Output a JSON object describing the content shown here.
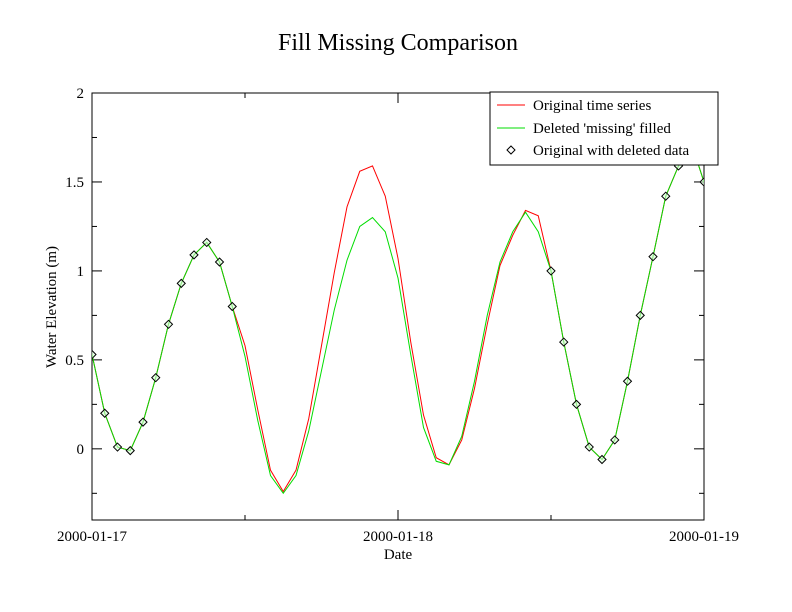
{
  "chart_data": {
    "type": "line",
    "title": "Fill Missing Comparison",
    "xlabel": "Date",
    "ylabel": "Water Elevation (m)",
    "xlim": [
      "2000-01-17 00:00",
      "2000-01-19 00:00"
    ],
    "ylim": [
      -0.4,
      2.0
    ],
    "x_ticks": [
      "2000-01-17",
      "2000-01-18",
      "2000-01-19"
    ],
    "y_ticks": [
      "0",
      "0.5",
      "1",
      "1.5",
      "2"
    ],
    "grid": false,
    "legend_position": "top-right",
    "colors": {
      "original": "#ff0000",
      "filled": "#00dd00",
      "markers": "#000000",
      "marker_fill": "#d8ffd8"
    },
    "series": [
      {
        "name": "Original time series",
        "style": "line",
        "color": "#ff0000",
        "x": [
          "2000-01-17 00:00",
          "2000-01-17 01:00",
          "2000-01-17 02:00",
          "2000-01-17 03:00",
          "2000-01-17 04:00",
          "2000-01-17 05:00",
          "2000-01-17 06:00",
          "2000-01-17 07:00",
          "2000-01-17 08:00",
          "2000-01-17 09:00",
          "2000-01-17 10:00",
          "2000-01-17 11:00",
          "2000-01-17 12:00",
          "2000-01-17 13:00",
          "2000-01-17 14:00",
          "2000-01-17 15:00",
          "2000-01-17 16:00",
          "2000-01-17 17:00",
          "2000-01-17 18:00",
          "2000-01-17 19:00",
          "2000-01-17 20:00",
          "2000-01-17 21:00",
          "2000-01-17 22:00",
          "2000-01-17 23:00",
          "2000-01-18 00:00",
          "2000-01-18 01:00",
          "2000-01-18 02:00",
          "2000-01-18 03:00",
          "2000-01-18 04:00",
          "2000-01-18 05:00",
          "2000-01-18 06:00",
          "2000-01-18 07:00",
          "2000-01-18 08:00",
          "2000-01-18 09:00",
          "2000-01-18 10:00",
          "2000-01-18 11:00",
          "2000-01-18 12:00",
          "2000-01-18 13:00",
          "2000-01-18 14:00",
          "2000-01-18 15:00",
          "2000-01-18 16:00",
          "2000-01-18 17:00",
          "2000-01-18 18:00",
          "2000-01-18 19:00",
          "2000-01-18 20:00",
          "2000-01-18 21:00",
          "2000-01-18 22:00",
          "2000-01-18 23:00",
          "2000-01-19 00:00"
        ],
        "y": [
          0.53,
          0.2,
          0.01,
          -0.01,
          0.15,
          0.4,
          0.7,
          0.93,
          1.09,
          1.16,
          1.05,
          0.8,
          0.58,
          0.22,
          -0.12,
          -0.24,
          -0.12,
          0.17,
          0.58,
          0.99,
          1.36,
          1.56,
          1.59,
          1.42,
          1.07,
          0.6,
          0.19,
          -0.05,
          -0.09,
          0.05,
          0.34,
          0.7,
          1.03,
          1.2,
          1.34,
          1.31,
          1.0,
          0.6,
          0.25,
          0.01,
          -0.06,
          0.05,
          0.38,
          0.75,
          1.08,
          1.42,
          1.59,
          1.72,
          1.5
        ]
      },
      {
        "name": "Deleted 'missing' filled",
        "style": "line",
        "color": "#00dd00",
        "x": [
          "2000-01-17 00:00",
          "2000-01-17 01:00",
          "2000-01-17 02:00",
          "2000-01-17 03:00",
          "2000-01-17 04:00",
          "2000-01-17 05:00",
          "2000-01-17 06:00",
          "2000-01-17 07:00",
          "2000-01-17 08:00",
          "2000-01-17 09:00",
          "2000-01-17 10:00",
          "2000-01-17 11:00",
          "2000-01-17 12:00",
          "2000-01-17 13:00",
          "2000-01-17 14:00",
          "2000-01-17 15:00",
          "2000-01-17 16:00",
          "2000-01-17 17:00",
          "2000-01-17 18:00",
          "2000-01-17 19:00",
          "2000-01-17 20:00",
          "2000-01-17 21:00",
          "2000-01-17 22:00",
          "2000-01-17 23:00",
          "2000-01-18 00:00",
          "2000-01-18 01:00",
          "2000-01-18 02:00",
          "2000-01-18 03:00",
          "2000-01-18 04:00",
          "2000-01-18 05:00",
          "2000-01-18 06:00",
          "2000-01-18 07:00",
          "2000-01-18 08:00",
          "2000-01-18 09:00",
          "2000-01-18 10:00",
          "2000-01-18 11:00",
          "2000-01-18 12:00",
          "2000-01-18 13:00",
          "2000-01-18 14:00",
          "2000-01-18 15:00",
          "2000-01-18 16:00",
          "2000-01-18 17:00",
          "2000-01-18 18:00",
          "2000-01-18 19:00",
          "2000-01-18 20:00",
          "2000-01-18 21:00",
          "2000-01-18 22:00",
          "2000-01-18 23:00",
          "2000-01-19 00:00"
        ],
        "y": [
          0.53,
          0.2,
          0.01,
          -0.01,
          0.15,
          0.4,
          0.7,
          0.93,
          1.09,
          1.16,
          1.05,
          0.8,
          0.52,
          0.16,
          -0.15,
          -0.25,
          -0.15,
          0.1,
          0.44,
          0.78,
          1.06,
          1.25,
          1.3,
          1.22,
          0.96,
          0.53,
          0.12,
          -0.07,
          -0.09,
          0.07,
          0.38,
          0.75,
          1.05,
          1.22,
          1.33,
          1.22,
          1.0,
          0.6,
          0.25,
          0.01,
          -0.06,
          0.05,
          0.38,
          0.75,
          1.08,
          1.42,
          1.59,
          1.72,
          1.5
        ]
      },
      {
        "name": "Original with deleted data",
        "style": "markers",
        "marker": "diamond",
        "color": "#000000",
        "x": [
          "2000-01-17 00:00",
          "2000-01-17 01:00",
          "2000-01-17 02:00",
          "2000-01-17 03:00",
          "2000-01-17 04:00",
          "2000-01-17 05:00",
          "2000-01-17 06:00",
          "2000-01-17 07:00",
          "2000-01-17 08:00",
          "2000-01-17 09:00",
          "2000-01-17 10:00",
          "2000-01-17 11:00",
          "2000-01-18 12:00",
          "2000-01-18 13:00",
          "2000-01-18 14:00",
          "2000-01-18 15:00",
          "2000-01-18 16:00",
          "2000-01-18 17:00",
          "2000-01-18 18:00",
          "2000-01-18 19:00",
          "2000-01-18 20:00",
          "2000-01-18 21:00",
          "2000-01-18 22:00",
          "2000-01-18 23:00",
          "2000-01-19 00:00"
        ],
        "y": [
          0.53,
          0.2,
          0.01,
          -0.01,
          0.15,
          0.4,
          0.7,
          0.93,
          1.09,
          1.16,
          1.05,
          0.8,
          1.0,
          0.6,
          0.25,
          0.01,
          -0.06,
          0.05,
          0.38,
          0.75,
          1.08,
          1.42,
          1.59,
          1.72,
          1.5
        ]
      }
    ]
  }
}
